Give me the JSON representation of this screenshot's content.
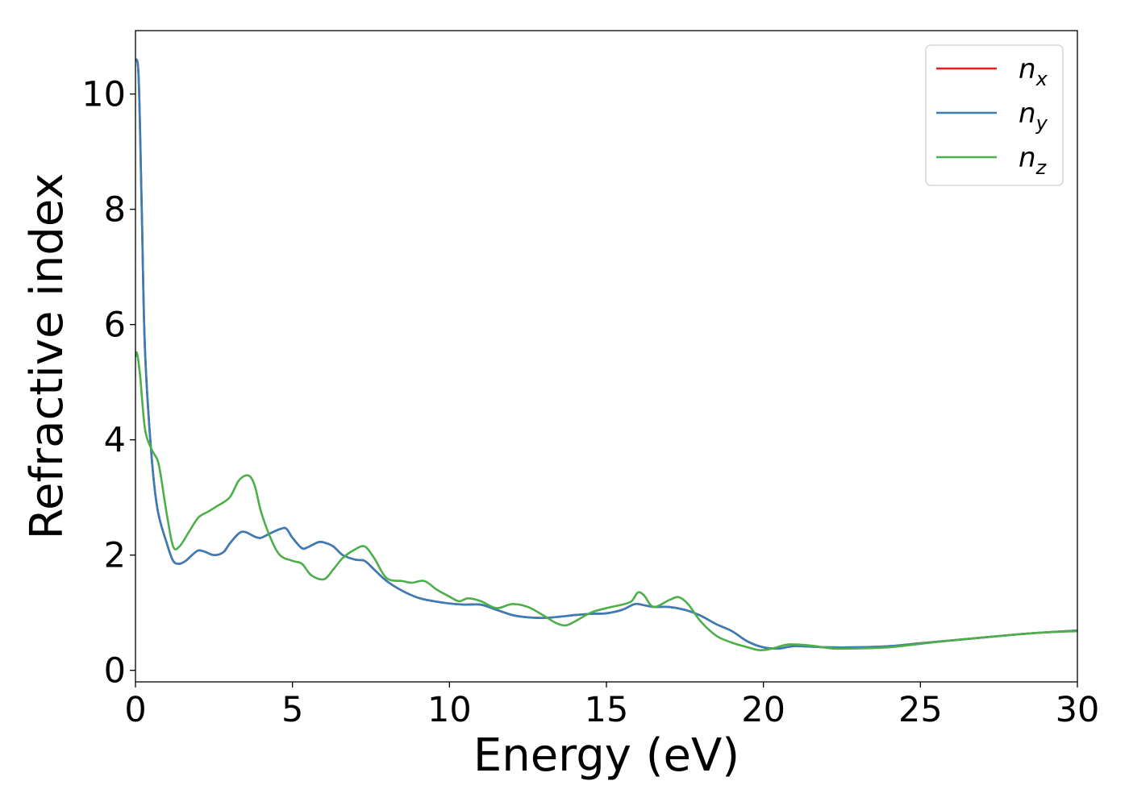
{
  "chart_data": {
    "type": "line",
    "title": "",
    "xlabel": "Energy (eV)",
    "ylabel": "Refractive index",
    "xlim": [
      0,
      30
    ],
    "ylim": [
      -0.2,
      11.1
    ],
    "xticks": [
      0,
      5,
      10,
      15,
      20,
      25,
      30
    ],
    "xtick_labels": [
      "0",
      "5",
      "10",
      "15",
      "20",
      "25",
      "30"
    ],
    "yticks": [
      0,
      2,
      4,
      6,
      8,
      10
    ],
    "ytick_labels": [
      "0",
      "2",
      "4",
      "6",
      "8",
      "10"
    ],
    "grid": false,
    "legend_position": "top-right",
    "series": [
      {
        "name": "n",
        "subscript": "x",
        "color": "#e41a1c",
        "x": [
          0,
          0.1,
          0.2,
          0.3,
          0.5,
          0.7,
          1.0,
          1.2,
          1.4,
          1.6,
          1.8,
          2.0,
          2.2,
          2.5,
          2.8,
          3.0,
          3.3,
          3.5,
          3.8,
          4.0,
          4.3,
          4.6,
          4.8,
          5.0,
          5.3,
          5.5,
          5.8,
          6.0,
          6.3,
          6.6,
          7.0,
          7.3,
          7.6,
          8.0,
          8.5,
          9.0,
          9.5,
          10.0,
          10.5,
          11.0,
          11.5,
          12.0,
          12.5,
          13.0,
          13.5,
          14.0,
          14.5,
          15.0,
          15.5,
          15.9,
          16.2,
          16.5,
          17.0,
          17.5,
          18.0,
          18.5,
          19.0,
          19.5,
          20.0,
          20.5,
          21.0,
          22.0,
          23.0,
          24.0,
          25.0,
          26.0,
          27.0,
          28.0,
          29.0,
          30.0
        ],
        "values": [
          10.6,
          10.3,
          8.0,
          5.6,
          3.8,
          2.8,
          2.2,
          1.9,
          1.85,
          1.9,
          2.0,
          2.08,
          2.06,
          2.0,
          2.05,
          2.2,
          2.38,
          2.4,
          2.32,
          2.3,
          2.38,
          2.45,
          2.46,
          2.3,
          2.12,
          2.14,
          2.22,
          2.22,
          2.15,
          2.0,
          1.92,
          1.9,
          1.75,
          1.55,
          1.38,
          1.26,
          1.2,
          1.16,
          1.14,
          1.14,
          1.05,
          0.96,
          0.92,
          0.91,
          0.93,
          0.96,
          0.98,
          0.99,
          1.05,
          1.15,
          1.13,
          1.1,
          1.1,
          1.05,
          0.95,
          0.8,
          0.68,
          0.5,
          0.4,
          0.38,
          0.42,
          0.4,
          0.4,
          0.42,
          0.47,
          0.52,
          0.57,
          0.62,
          0.66,
          0.69
        ]
      },
      {
        "name": "n",
        "subscript": "y",
        "color": "#377eb8",
        "x": [
          0,
          0.1,
          0.2,
          0.3,
          0.5,
          0.7,
          1.0,
          1.2,
          1.4,
          1.6,
          1.8,
          2.0,
          2.2,
          2.5,
          2.8,
          3.0,
          3.3,
          3.5,
          3.8,
          4.0,
          4.3,
          4.6,
          4.8,
          5.0,
          5.3,
          5.5,
          5.8,
          6.0,
          6.3,
          6.6,
          7.0,
          7.3,
          7.6,
          8.0,
          8.5,
          9.0,
          9.5,
          10.0,
          10.5,
          11.0,
          11.5,
          12.0,
          12.5,
          13.0,
          13.5,
          14.0,
          14.5,
          15.0,
          15.5,
          15.9,
          16.2,
          16.5,
          17.0,
          17.5,
          18.0,
          18.5,
          19.0,
          19.5,
          20.0,
          20.5,
          21.0,
          22.0,
          23.0,
          24.0,
          25.0,
          26.0,
          27.0,
          28.0,
          29.0,
          30.0
        ],
        "values": [
          10.6,
          10.3,
          8.0,
          5.6,
          3.8,
          2.8,
          2.2,
          1.9,
          1.85,
          1.9,
          2.0,
          2.08,
          2.06,
          2.0,
          2.05,
          2.2,
          2.38,
          2.4,
          2.32,
          2.3,
          2.38,
          2.45,
          2.46,
          2.3,
          2.12,
          2.14,
          2.22,
          2.22,
          2.15,
          2.0,
          1.92,
          1.9,
          1.75,
          1.55,
          1.38,
          1.26,
          1.2,
          1.16,
          1.14,
          1.14,
          1.05,
          0.96,
          0.92,
          0.91,
          0.93,
          0.96,
          0.98,
          0.99,
          1.05,
          1.15,
          1.13,
          1.1,
          1.1,
          1.05,
          0.95,
          0.8,
          0.68,
          0.5,
          0.4,
          0.38,
          0.42,
          0.4,
          0.4,
          0.42,
          0.47,
          0.52,
          0.57,
          0.62,
          0.66,
          0.69
        ]
      },
      {
        "name": "n",
        "subscript": "z",
        "color": "#4daf4a",
        "x": [
          0,
          0.05,
          0.15,
          0.3,
          0.5,
          0.7,
          0.8,
          1.0,
          1.2,
          1.4,
          1.7,
          2.0,
          2.3,
          2.6,
          3.0,
          3.3,
          3.6,
          3.8,
          4.0,
          4.3,
          4.6,
          5.0,
          5.3,
          5.6,
          6.0,
          6.3,
          6.6,
          7.0,
          7.3,
          7.6,
          8.0,
          8.5,
          8.8,
          9.2,
          9.6,
          10.0,
          10.3,
          10.6,
          11.0,
          11.5,
          12.0,
          12.5,
          13.0,
          13.4,
          13.7,
          14.0,
          14.5,
          15.0,
          15.5,
          15.8,
          16.0,
          16.2,
          16.5,
          17.0,
          17.3,
          17.6,
          18.0,
          18.5,
          19.0,
          19.5,
          19.9,
          20.3,
          20.8,
          21.5,
          22.2,
          23.0,
          24.0,
          25.0,
          26.0,
          27.0,
          28.0,
          29.0,
          30.0
        ],
        "values": [
          5.45,
          5.5,
          5.1,
          4.2,
          3.85,
          3.65,
          3.4,
          2.7,
          2.15,
          2.15,
          2.4,
          2.65,
          2.75,
          2.85,
          3.0,
          3.3,
          3.38,
          3.2,
          2.75,
          2.3,
          2.0,
          1.9,
          1.85,
          1.65,
          1.58,
          1.75,
          1.95,
          2.1,
          2.15,
          1.95,
          1.6,
          1.55,
          1.52,
          1.55,
          1.4,
          1.28,
          1.2,
          1.25,
          1.2,
          1.08,
          1.15,
          1.1,
          0.95,
          0.82,
          0.78,
          0.85,
          1.0,
          1.08,
          1.14,
          1.2,
          1.35,
          1.3,
          1.1,
          1.22,
          1.27,
          1.15,
          0.85,
          0.6,
          0.48,
          0.4,
          0.35,
          0.38,
          0.45,
          0.43,
          0.38,
          0.38,
          0.4,
          0.46,
          0.52,
          0.57,
          0.62,
          0.66,
          0.68
        ]
      }
    ]
  }
}
